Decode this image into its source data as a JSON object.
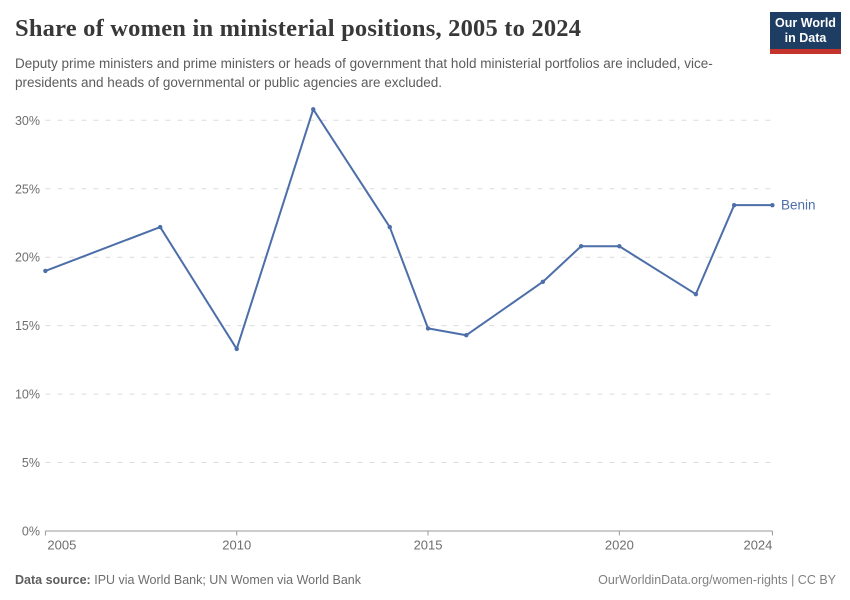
{
  "header": {
    "title": "Share of women in ministerial positions, 2005 to 2024",
    "subtitle": "Deputy prime ministers and prime ministers or heads of government that hold ministerial portfolios are included, vice-presidents and heads of governmental or public agencies are excluded."
  },
  "logo": {
    "line1": "Our World",
    "line2": "in Data",
    "bg_color": "#1d3d63",
    "accent_color": "#c5332d"
  },
  "chart_data": {
    "type": "line",
    "title": "Share of women in ministerial positions, 2005 to 2024",
    "xlabel": "",
    "ylabel": "",
    "x": [
      2005,
      2008,
      2010,
      2012,
      2014,
      2015,
      2016,
      2018,
      2019,
      2020,
      2022,
      2023,
      2024
    ],
    "series": [
      {
        "name": "Benin",
        "values": [
          19.0,
          22.2,
          13.3,
          30.8,
          22.2,
          14.8,
          14.3,
          18.2,
          20.8,
          20.8,
          17.3,
          23.8,
          23.8
        ],
        "color": "#4c6ea9"
      }
    ],
    "xlim": [
      2005,
      2024
    ],
    "ylim": [
      0,
      30
    ],
    "yticks": [
      0,
      5,
      10,
      15,
      20,
      25,
      30
    ],
    "ytick_labels": [
      "0%",
      "5%",
      "10%",
      "15%",
      "20%",
      "25%",
      "30%"
    ],
    "xticks": [
      2005,
      2010,
      2015,
      2020,
      2024
    ],
    "xtick_labels": [
      "2005",
      "2010",
      "2015",
      "2020",
      "2024"
    ],
    "grid": "horizontal dashed gridlines, on",
    "legend_position": "end-of-line entity label",
    "entity_label": "Benin",
    "grid_color": "#dcdcdc",
    "axis_color": "#9a9a9a",
    "tick_label_color": "#6e6e6e"
  },
  "footer": {
    "source_label": "Data source:",
    "source_text": "IPU via World Bank; UN Women via World Bank",
    "right_note": "OurWorldinData.org/women-rights | CC BY"
  }
}
